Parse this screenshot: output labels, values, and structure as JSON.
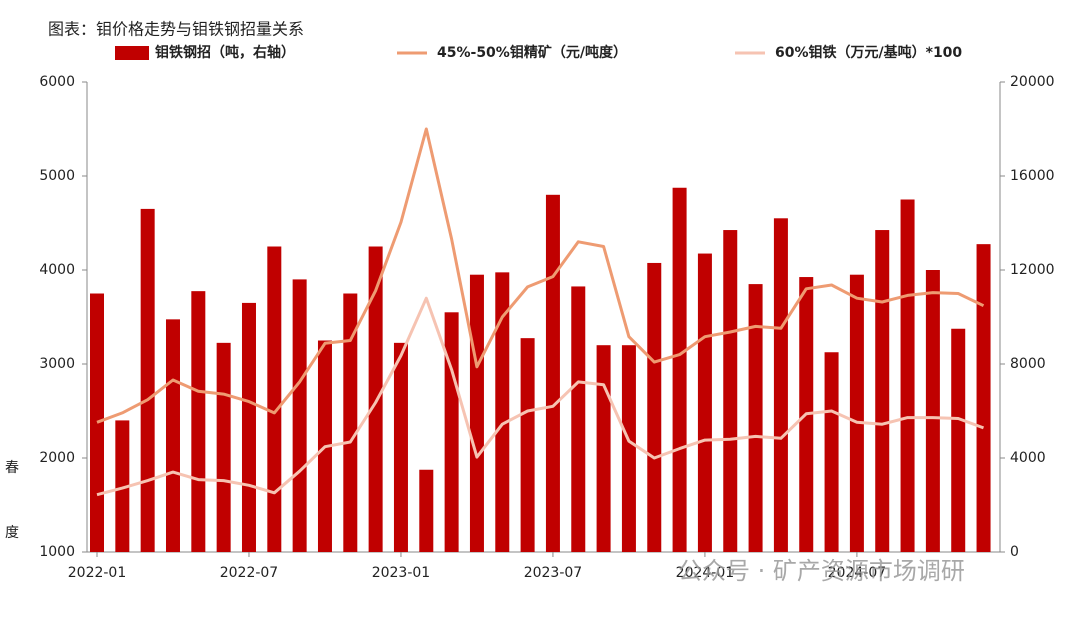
{
  "chart_data": {
    "type": "bar-line",
    "title": "图表：钼价格走势与钼铁钢招量关系",
    "categories": [
      "2022-01",
      null,
      null,
      null,
      null,
      null,
      "2022-07",
      null,
      null,
      null,
      null,
      null,
      "2023-01",
      null,
      null,
      null,
      null,
      null,
      "2023-07",
      null,
      null,
      null,
      null,
      null,
      "2024-01",
      null,
      null,
      null,
      null,
      null,
      "2024-07",
      null,
      null,
      null,
      null,
      null
    ],
    "series": [
      {
        "name": "钼铁钢招（吨，右轴）",
        "type": "bar",
        "axis": "y2",
        "color": "#c00000",
        "values": [
          11000,
          5600,
          14600,
          9900,
          11100,
          8900,
          10600,
          13000,
          11600,
          9000,
          11000,
          13000,
          8900,
          3500,
          10200,
          11800,
          11900,
          9100,
          15200,
          11300,
          8800,
          8800,
          12300,
          15500,
          12700,
          13700,
          11400,
          14200,
          11700,
          8500,
          11800,
          13700,
          15000,
          12000,
          9500,
          13100
        ]
      },
      {
        "name": "45%-50%钼精矿（元/吨度）",
        "type": "line",
        "color": "#ee9b72",
        "values": [
          2380,
          2480,
          2620,
          2830,
          2710,
          2680,
          2600,
          2480,
          2810,
          3220,
          3250,
          3780,
          4510,
          5500,
          4330,
          2970,
          3500,
          3820,
          3930,
          4300,
          4250,
          3290,
          3020,
          3100,
          3290,
          3340,
          3400,
          3380,
          3800,
          3840,
          3700,
          3660,
          3730,
          3760,
          3750,
          3620
        ]
      },
      {
        "name": "60%钼铁（万元/基吨）*100",
        "type": "line",
        "color": "#f6c3b2",
        "values": [
          1610,
          1680,
          1760,
          1850,
          1770,
          1760,
          1710,
          1630,
          1860,
          2120,
          2170,
          2590,
          3090,
          3700,
          2940,
          2010,
          2360,
          2500,
          2550,
          2810,
          2780,
          2180,
          2000,
          2100,
          2190,
          2200,
          2230,
          2210,
          2470,
          2500,
          2380,
          2360,
          2430,
          2430,
          2420,
          2320
        ]
      }
    ],
    "ylim": [
      1000,
      6000
    ],
    "yticks": [
      1000,
      2000,
      3000,
      4000,
      5000,
      6000
    ],
    "y2lim": [
      0,
      20000
    ],
    "y2ticks": [
      0,
      4000,
      8000,
      12000,
      16000,
      20000
    ],
    "grid": false,
    "side_text": [
      "春",
      "度"
    ],
    "watermark": "公众号 · 矿产资源市场调研"
  }
}
